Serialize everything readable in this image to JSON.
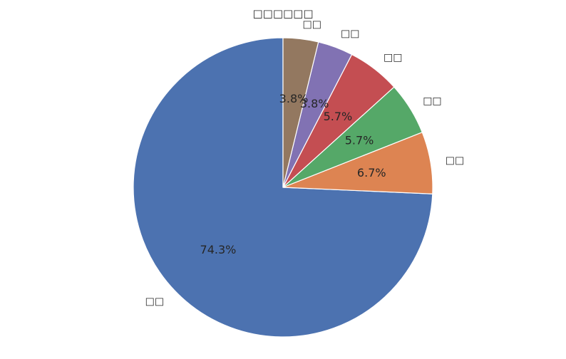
{
  "chart_data": {
    "type": "pie",
    "title": "□□□□□□",
    "labels": [
      "□□",
      "□□",
      "□□",
      "□□",
      "□□",
      "□□"
    ],
    "values": [
      74.3,
      6.7,
      5.7,
      5.7,
      3.8,
      3.8
    ],
    "percent_labels": [
      "74.3%",
      "6.7%",
      "5.7%",
      "5.7%",
      "3.8%",
      "3.8%"
    ],
    "colors": [
      "#4c72b0",
      "#dd8452",
      "#55a868",
      "#c44e52",
      "#8172b3",
      "#937860"
    ],
    "start_angle": "top",
    "direction": "clockwise-from-last-slice",
    "legend": "none"
  }
}
